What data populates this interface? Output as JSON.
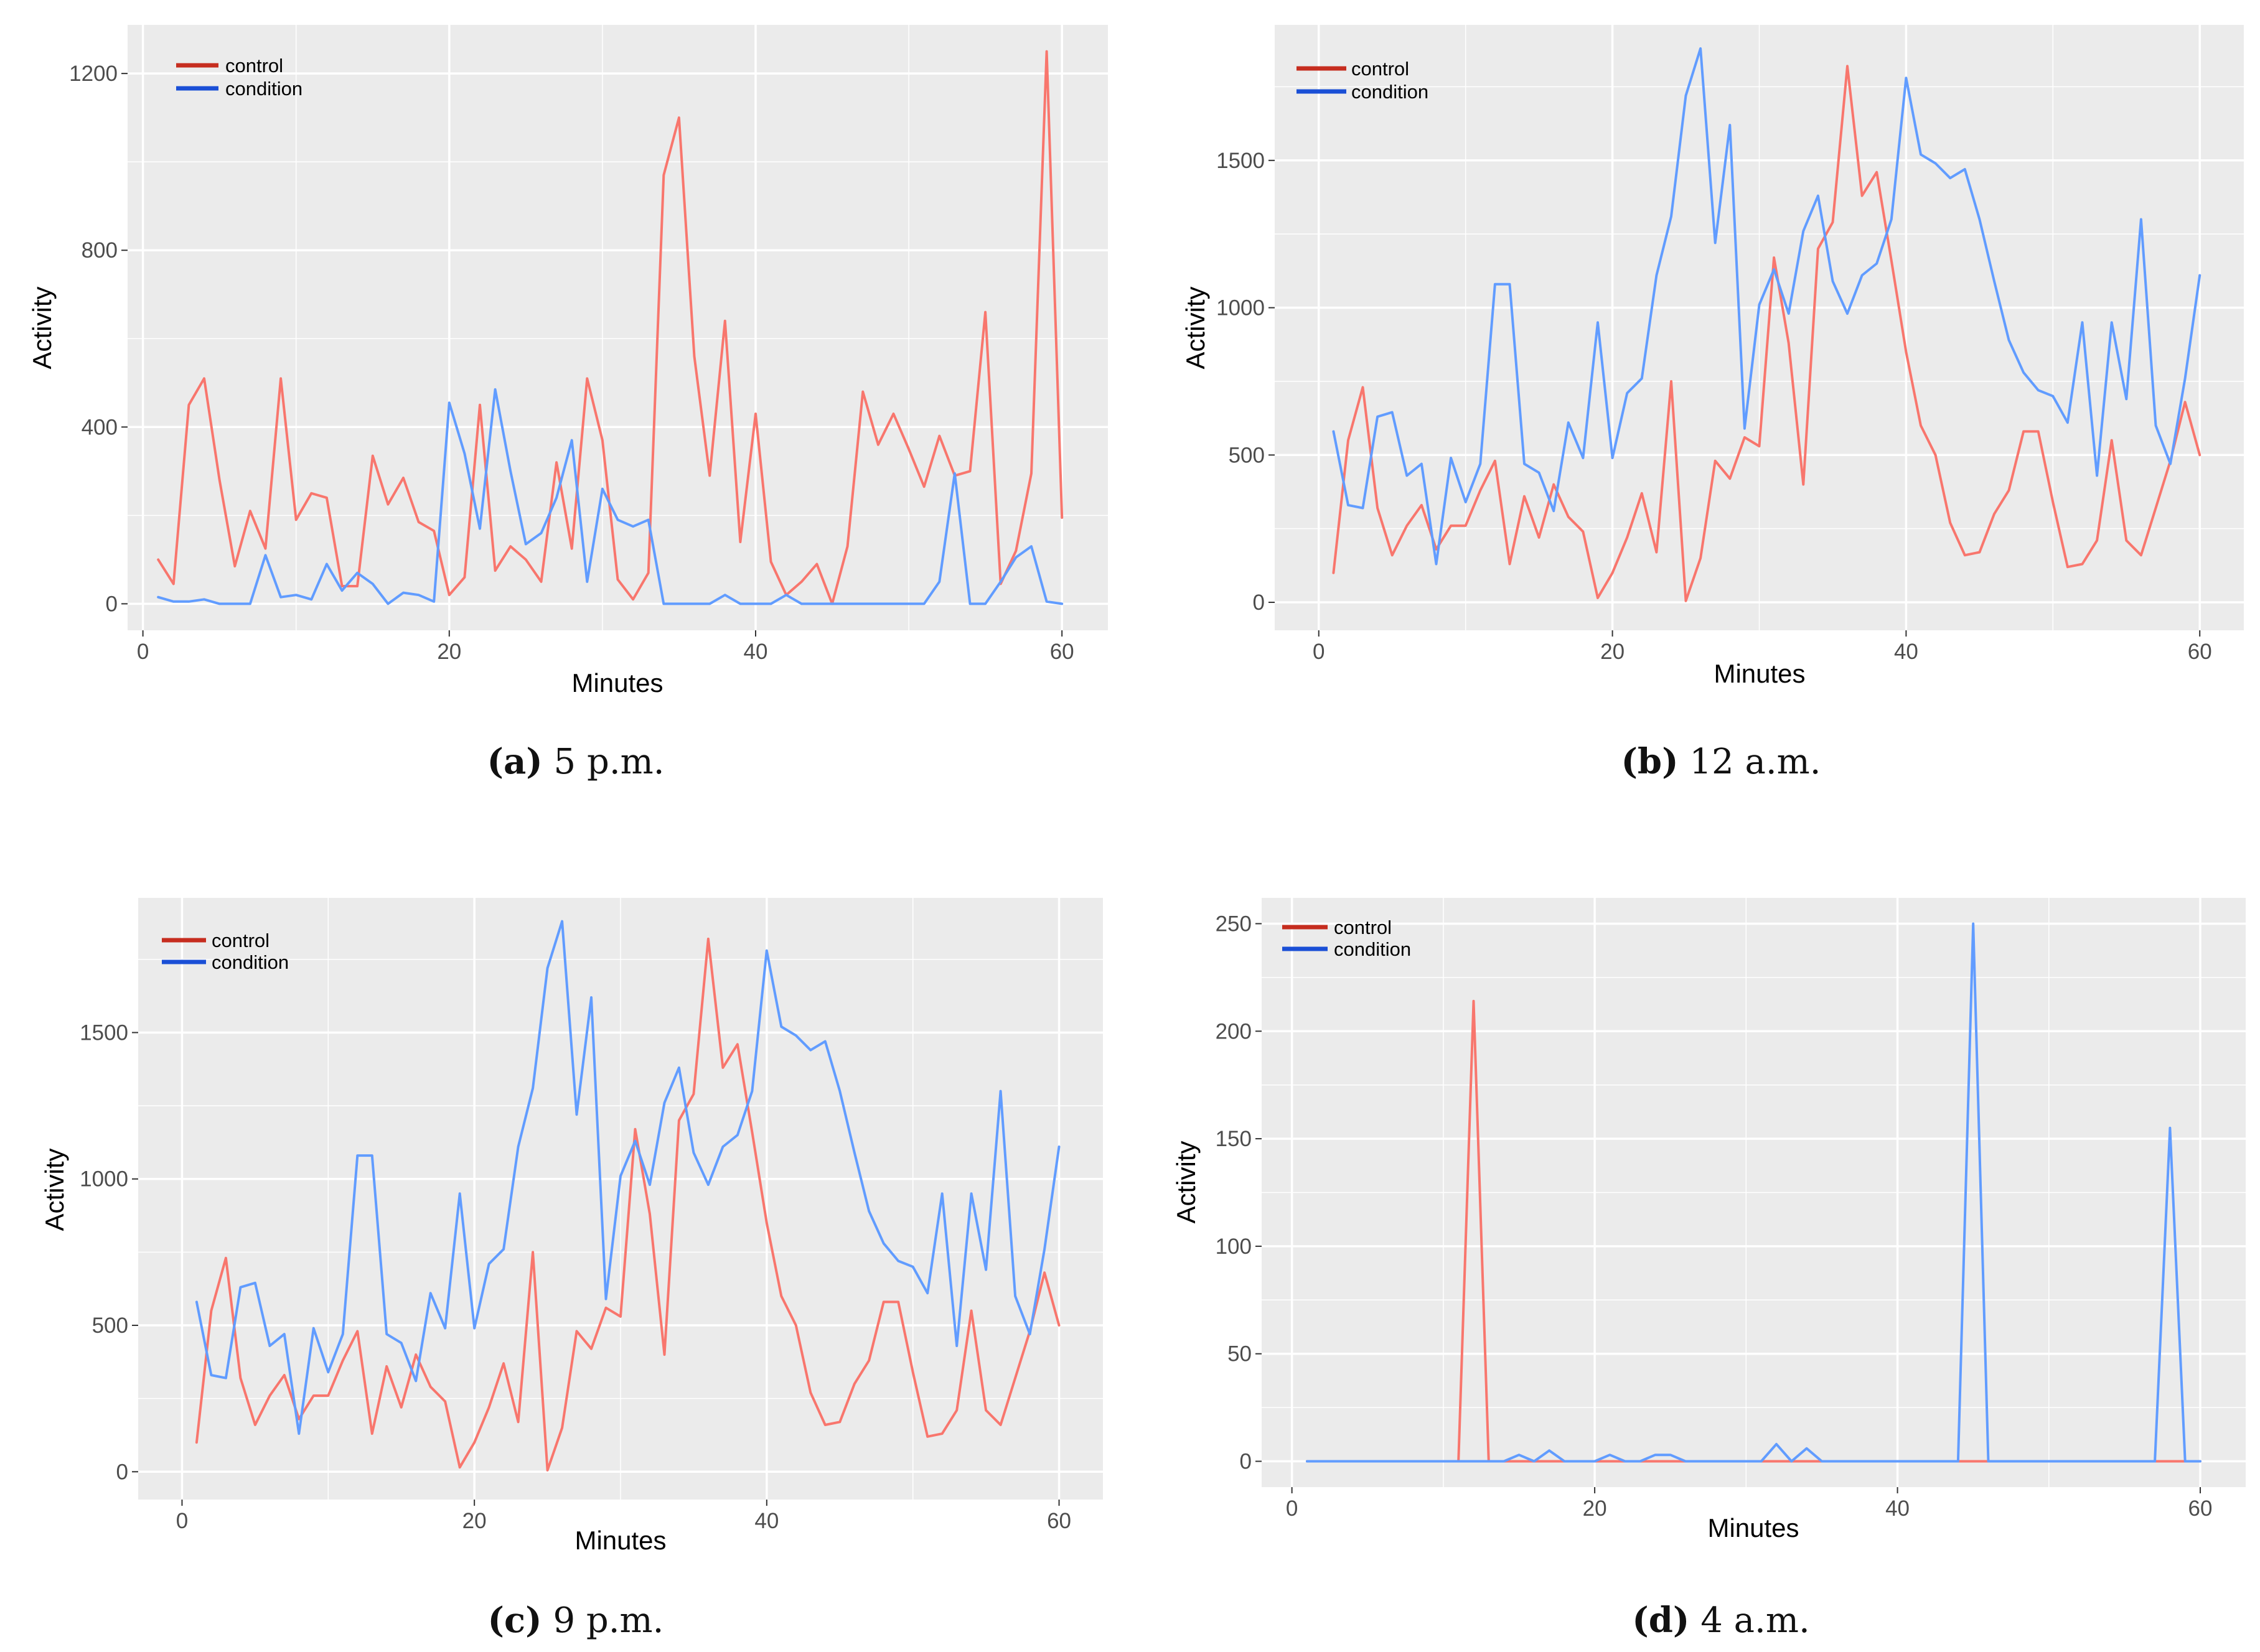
{
  "colors": {
    "panel_bg": "#ebebeb",
    "grid": "#ffffff",
    "tick": "#333333",
    "control_line": "#f8766d",
    "condition_line": "#619cff",
    "legend_control": "#c62d1f",
    "legend_condition": "#1a4fd6"
  },
  "chart_data": [
    {
      "type": "line",
      "panel": "a",
      "caption_label": "(a)",
      "caption_text": "5 p.m.",
      "title": "",
      "xlabel": "Minutes",
      "ylabel": "Activity",
      "xlim": [
        -1,
        63
      ],
      "ylim": [
        -60,
        1310
      ],
      "xticks": [
        0,
        20,
        40,
        60
      ],
      "yticks": [
        0,
        400,
        800,
        1200
      ],
      "xtick_labels": [
        "0",
        "20",
        "40",
        "60"
      ],
      "ytick_labels": [
        "0",
        "400",
        "800",
        "1200"
      ],
      "legend": [
        "control",
        "condition"
      ],
      "legend_position": "top-left",
      "x": [
        1,
        2,
        3,
        4,
        5,
        6,
        7,
        8,
        9,
        10,
        11,
        12,
        13,
        14,
        15,
        16,
        17,
        18,
        19,
        20,
        21,
        22,
        23,
        24,
        25,
        26,
        27,
        28,
        29,
        30,
        31,
        32,
        33,
        34,
        35,
        36,
        37,
        38,
        39,
        40,
        41,
        42,
        43,
        44,
        45,
        46,
        47,
        48,
        49,
        50,
        51,
        52,
        53,
        54,
        55,
        56,
        57,
        58,
        59,
        60
      ],
      "series": [
        {
          "name": "control",
          "values": [
            100,
            45,
            450,
            510,
            280,
            85,
            210,
            125,
            510,
            190,
            250,
            240,
            40,
            40,
            335,
            225,
            285,
            185,
            165,
            20,
            60,
            450,
            75,
            130,
            100,
            50,
            320,
            125,
            510,
            370,
            55,
            10,
            70,
            970,
            1100,
            560,
            290,
            640,
            140,
            430,
            95,
            20,
            50,
            90,
            0,
            130,
            480,
            360,
            430,
            350,
            265,
            380,
            290,
            300,
            660,
            45,
            120,
            295,
            1250,
            195
          ]
        },
        {
          "name": "condition",
          "values": [
            15,
            5,
            5,
            10,
            0,
            0,
            0,
            110,
            15,
            20,
            10,
            90,
            30,
            70,
            45,
            0,
            25,
            20,
            5,
            455,
            340,
            170,
            485,
            300,
            135,
            160,
            240,
            370,
            50,
            260,
            190,
            175,
            190,
            0,
            0,
            0,
            0,
            20,
            0,
            0,
            0,
            20,
            0,
            0,
            0,
            0,
            0,
            0,
            0,
            0,
            0,
            50,
            295,
            0,
            0,
            50,
            105,
            130,
            5,
            0
          ]
        }
      ]
    },
    {
      "type": "line",
      "panel": "b",
      "caption_label": "(b)",
      "caption_text": "12 a.m.",
      "title": "",
      "xlabel": "Minutes",
      "ylabel": "Activity",
      "xlim": [
        -3,
        63
      ],
      "ylim": [
        -95,
        1960
      ],
      "xticks": [
        0,
        20,
        40,
        60
      ],
      "yticks": [
        0,
        500,
        1000,
        1500
      ],
      "xtick_labels": [
        "0",
        "20",
        "40",
        "60"
      ],
      "ytick_labels": [
        "0",
        "500",
        "1000",
        "1500"
      ],
      "legend": [
        "control",
        "condition"
      ],
      "legend_position": "top-left",
      "x": [
        1,
        2,
        3,
        4,
        5,
        6,
        7,
        8,
        9,
        10,
        11,
        12,
        13,
        14,
        15,
        16,
        17,
        18,
        19,
        20,
        21,
        22,
        23,
        24,
        25,
        26,
        27,
        28,
        29,
        30,
        31,
        32,
        33,
        34,
        35,
        36,
        37,
        38,
        39,
        40,
        41,
        42,
        43,
        44,
        45,
        46,
        47,
        48,
        49,
        50,
        51,
        52,
        53,
        54,
        55,
        56,
        57,
        58,
        59,
        60
      ],
      "series": [
        {
          "name": "control",
          "values": [
            100,
            550,
            730,
            320,
            160,
            260,
            330,
            180,
            260,
            260,
            380,
            480,
            130,
            360,
            220,
            400,
            290,
            240,
            15,
            100,
            220,
            370,
            170,
            750,
            5,
            150,
            480,
            420,
            560,
            530,
            1170,
            880,
            400,
            1200,
            1290,
            1820,
            1380,
            1460,
            1160,
            850,
            600,
            500,
            270,
            160,
            170,
            300,
            380,
            580,
            580,
            340,
            120,
            130,
            210,
            550,
            210,
            160,
            320,
            480,
            680,
            500
          ]
        },
        {
          "name": "condition",
          "values": [
            580,
            330,
            320,
            630,
            645,
            430,
            470,
            130,
            490,
            340,
            470,
            1080,
            1080,
            470,
            440,
            310,
            610,
            490,
            950,
            490,
            710,
            760,
            1110,
            1310,
            1720,
            1880,
            1220,
            1620,
            590,
            1010,
            1130,
            980,
            1260,
            1380,
            1090,
            980,
            1110,
            1150,
            1300,
            1780,
            1520,
            1490,
            1440,
            1470,
            1300,
            1090,
            890,
            780,
            720,
            700,
            610,
            950,
            430,
            950,
            690,
            1300,
            600,
            470,
            760,
            1110
          ]
        }
      ]
    },
    {
      "type": "line",
      "panel": "c",
      "caption_label": "(c)",
      "caption_text": "9 p.m.",
      "title": "",
      "xlabel": "Minutes",
      "ylabel": "Activity",
      "xlim": [
        -3,
        63
      ],
      "ylim": [
        -95,
        1960
      ],
      "xticks": [
        0,
        20,
        40,
        60
      ],
      "yticks": [
        0,
        500,
        1000,
        1500
      ],
      "xtick_labels": [
        "0",
        "20",
        "40",
        "60"
      ],
      "ytick_labels": [
        "0",
        "500",
        "1000",
        "1500"
      ],
      "legend": [
        "control",
        "condition"
      ],
      "legend_position": "top-left",
      "x": [
        1,
        2,
        3,
        4,
        5,
        6,
        7,
        8,
        9,
        10,
        11,
        12,
        13,
        14,
        15,
        16,
        17,
        18,
        19,
        20,
        21,
        22,
        23,
        24,
        25,
        26,
        27,
        28,
        29,
        30,
        31,
        32,
        33,
        34,
        35,
        36,
        37,
        38,
        39,
        40,
        41,
        42,
        43,
        44,
        45,
        46,
        47,
        48,
        49,
        50,
        51,
        52,
        53,
        54,
        55,
        56,
        57,
        58,
        59,
        60
      ],
      "series": [
        {
          "name": "control",
          "values": [
            100,
            550,
            730,
            320,
            160,
            260,
            330,
            180,
            260,
            260,
            380,
            480,
            130,
            360,
            220,
            400,
            290,
            240,
            15,
            100,
            220,
            370,
            170,
            750,
            5,
            150,
            480,
            420,
            560,
            530,
            1170,
            880,
            400,
            1200,
            1290,
            1820,
            1380,
            1460,
            1160,
            850,
            600,
            500,
            270,
            160,
            170,
            300,
            380,
            580,
            580,
            340,
            120,
            130,
            210,
            550,
            210,
            160,
            320,
            480,
            680,
            500
          ]
        },
        {
          "name": "condition",
          "values": [
            580,
            330,
            320,
            630,
            645,
            430,
            470,
            130,
            490,
            340,
            470,
            1080,
            1080,
            470,
            440,
            310,
            610,
            490,
            950,
            490,
            710,
            760,
            1110,
            1310,
            1720,
            1880,
            1220,
            1620,
            590,
            1010,
            1130,
            980,
            1260,
            1380,
            1090,
            980,
            1110,
            1150,
            1300,
            1780,
            1520,
            1490,
            1440,
            1470,
            1300,
            1090,
            890,
            780,
            720,
            700,
            610,
            950,
            430,
            950,
            690,
            1300,
            600,
            470,
            760,
            1110
          ]
        }
      ]
    },
    {
      "type": "line",
      "panel": "d",
      "caption_label": "(d)",
      "caption_text": "4 a.m.",
      "title": "",
      "xlabel": "Minutes",
      "ylabel": "Activity",
      "xlim": [
        -2,
        63
      ],
      "ylim": [
        -12,
        262
      ],
      "xticks": [
        0,
        20,
        40,
        60
      ],
      "yticks": [
        0,
        50,
        100,
        150,
        200,
        250
      ],
      "xtick_labels": [
        "0",
        "20",
        "40",
        "60"
      ],
      "ytick_labels": [
        "0",
        "50",
        "100",
        "150",
        "200",
        "250"
      ],
      "legend": [
        "control",
        "condition"
      ],
      "legend_position": "top-left",
      "x": [
        1,
        2,
        3,
        4,
        5,
        6,
        7,
        8,
        9,
        10,
        11,
        12,
        13,
        14,
        15,
        16,
        17,
        18,
        19,
        20,
        21,
        22,
        23,
        24,
        25,
        26,
        27,
        28,
        29,
        30,
        31,
        32,
        33,
        34,
        35,
        36,
        37,
        38,
        39,
        40,
        41,
        42,
        43,
        44,
        45,
        46,
        47,
        48,
        49,
        50,
        51,
        52,
        53,
        54,
        55,
        56,
        57,
        58,
        59,
        60
      ],
      "series": [
        {
          "name": "control",
          "values": [
            0,
            0,
            0,
            0,
            0,
            0,
            0,
            0,
            0,
            0,
            0,
            214,
            0,
            0,
            0,
            0,
            0,
            0,
            0,
            0,
            0,
            0,
            0,
            0,
            0,
            0,
            0,
            0,
            0,
            0,
            0,
            0,
            0,
            0,
            0,
            0,
            0,
            0,
            0,
            0,
            0,
            0,
            0,
            0,
            0,
            0,
            0,
            0,
            0,
            0,
            0,
            0,
            0,
            0,
            0,
            0,
            0,
            0,
            0,
            0
          ]
        },
        {
          "name": "condition",
          "values": [
            0,
            0,
            0,
            0,
            0,
            0,
            0,
            0,
            0,
            0,
            0,
            0,
            0,
            0,
            3,
            0,
            5,
            0,
            0,
            0,
            3,
            0,
            0,
            3,
            3,
            0,
            0,
            0,
            0,
            0,
            0,
            8,
            0,
            6,
            0,
            0,
            0,
            0,
            0,
            0,
            0,
            0,
            0,
            0,
            250,
            0,
            0,
            0,
            0,
            0,
            0,
            0,
            0,
            0,
            0,
            0,
            0,
            155,
            0,
            0
          ]
        }
      ]
    }
  ]
}
